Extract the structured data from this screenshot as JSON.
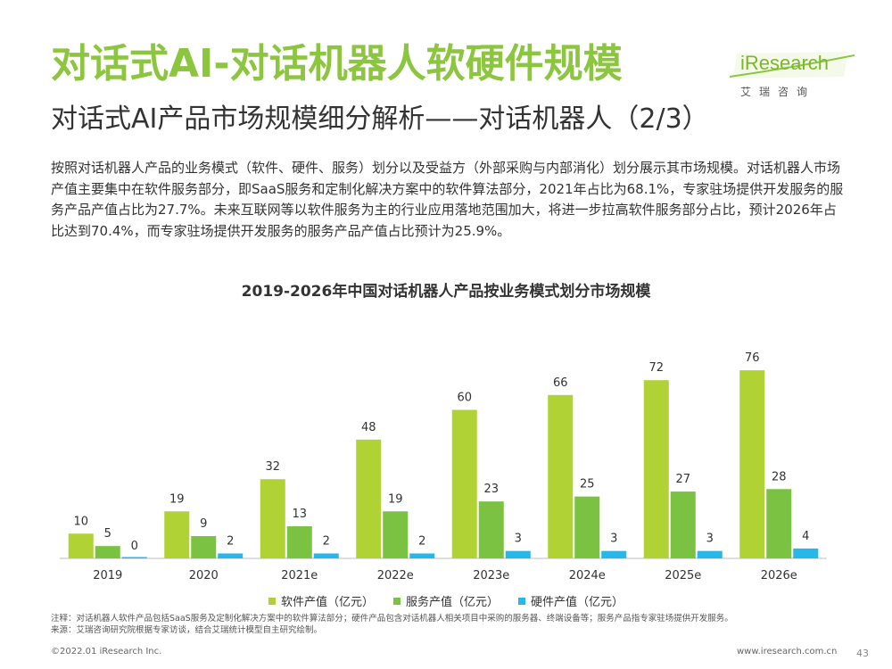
{
  "header": {
    "title": "对话式AI-对话机器人软硬件规模",
    "subtitle": "对话式AI产品市场规模细分解析——对话机器人（2/3）"
  },
  "logo": {
    "name": "iResearch",
    "sub": "艾瑞咨询"
  },
  "intro": "按照对话机器人产品的业务模式（软件、硬件、服务）划分以及受益方（外部采购与内部消化）划分展示其市场规模。对话机器人市场产值主要集中在软件服务部分，即SaaS服务和定制化解决方案中的软件算法部分，2021年占比为68.1%，专家驻场提供开发服务的服务产品产值占比为27.7%。未来互联网等以软件服务为主的行业应用落地范围加大，将进一步拉高软件服务部分占比，预计2026年占比达到70.4%，而专家驻场提供开发服务的服务产品产值占比预计为25.9%。",
  "notes": {
    "note": "注释：对话机器人软件产品包括SaaS服务及定制化解决方案中的软件算法部分；硬件产品包含对话机器人相关项目中采购的服务器、终端设备等；服务产品指专家驻场提供开发服务。",
    "source": "来源：艾瑞咨询研究院根据专家访谈，结合艾瑞统计模型自主研究绘制。"
  },
  "footer": {
    "copyright": "©2022.01 iResearch Inc.",
    "url": "www.iresearch.com.cn",
    "page": "43"
  },
  "chart_data": {
    "type": "bar",
    "title": "2019-2026年中国对话机器人产品按业务模式划分市场规模",
    "categories": [
      "2019",
      "2020",
      "2021e",
      "2022e",
      "2023e",
      "2024e",
      "2025e",
      "2026e"
    ],
    "series": [
      {
        "name": "软件产值（亿元）",
        "color": "#b1d235",
        "values": [
          10,
          19,
          32,
          48,
          60,
          66,
          72,
          76
        ]
      },
      {
        "name": "服务产值（亿元）",
        "color": "#7cc242",
        "values": [
          5,
          9,
          13,
          19,
          23,
          25,
          27,
          28
        ]
      },
      {
        "name": "硬件产值（亿元）",
        "color": "#29b6e8",
        "values": [
          0,
          2,
          2,
          2,
          3,
          3,
          3,
          4
        ]
      }
    ],
    "ylim": [
      0,
      80
    ],
    "legend": "bottom",
    "grid": false
  }
}
